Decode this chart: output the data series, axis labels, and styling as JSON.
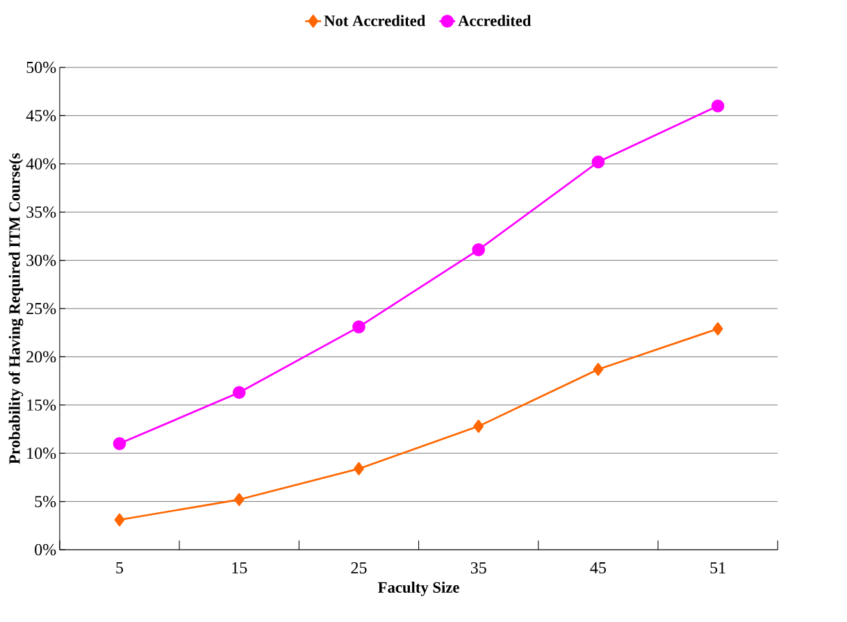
{
  "chart_data": {
    "type": "line",
    "xlabel": "Faculty Size",
    "ylabel": "Probability of Having Required ITM Course(s",
    "categories": [
      "5",
      "15",
      "25",
      "35",
      "45",
      "51"
    ],
    "series": [
      {
        "name": "Not Accredited",
        "color": "#ff6600",
        "marker": "diamond",
        "values": [
          3.1,
          5.2,
          8.4,
          12.8,
          18.7,
          22.9
        ]
      },
      {
        "name": "Accredited",
        "color": "#ff00ff",
        "marker": "circle",
        "values": [
          11.0,
          16.3,
          23.1,
          31.1,
          40.2,
          46.0
        ]
      }
    ],
    "ylim": [
      0,
      50
    ],
    "yticks": [
      {
        "value": 0,
        "label": "0%"
      },
      {
        "value": 5,
        "label": "5%"
      },
      {
        "value": 10,
        "label": "10%"
      },
      {
        "value": 15,
        "label": "15%"
      },
      {
        "value": 20,
        "label": "20%"
      },
      {
        "value": 25,
        "label": "25%"
      },
      {
        "value": 30,
        "label": "30%"
      },
      {
        "value": 35,
        "label": "35%"
      },
      {
        "value": 40,
        "label": "40%"
      },
      {
        "value": 45,
        "label": "45%"
      },
      {
        "value": 50,
        "label": "50%"
      }
    ],
    "grid": "y",
    "legend": "top",
    "line_style": "solid"
  }
}
